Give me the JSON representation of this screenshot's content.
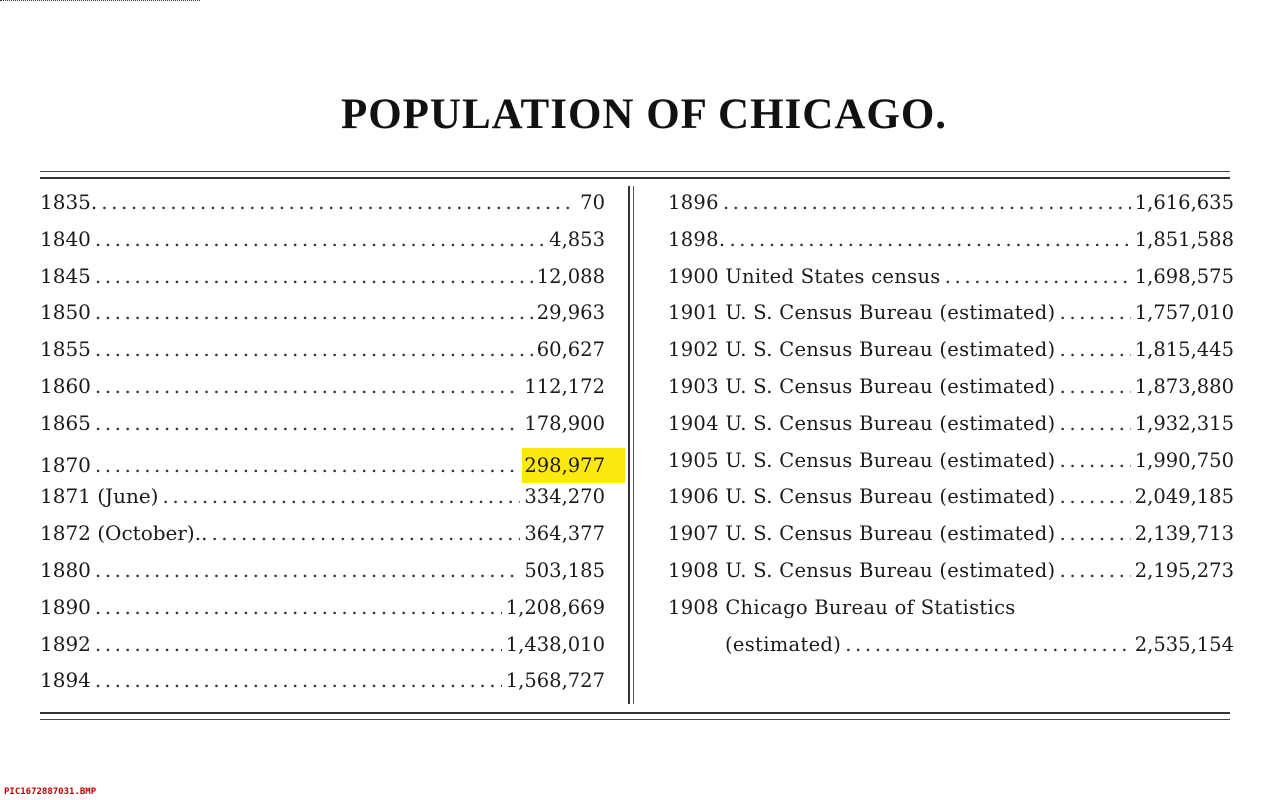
{
  "title": "POPULATION OF CHICAGO.",
  "left_rows": [
    {
      "label": "1835.",
      "value": "70"
    },
    {
      "label": "1840",
      "value": "4,853"
    },
    {
      "label": "1845",
      "value": "12,088"
    },
    {
      "label": "1850",
      "value": "29,963"
    },
    {
      "label": "1855",
      "value": "60,627"
    },
    {
      "label": "1860",
      "value": "112,172"
    },
    {
      "label": "1865",
      "value": "178,900"
    },
    {
      "label": "1870",
      "value": "298,977",
      "highlighted": true
    },
    {
      "label": "1871 (June)",
      "value": "334,270"
    },
    {
      "label": "1872 (October)..",
      "value": "364,377"
    },
    {
      "label": "1880",
      "value": "503,185"
    },
    {
      "label": "1890",
      "value": "1,208,669"
    },
    {
      "label": "1892",
      "value": "1,438,010"
    },
    {
      "label": "1894",
      "value": "1,568,727"
    }
  ],
  "right_rows": [
    {
      "label": "1896",
      "value": "1,616,635"
    },
    {
      "label": "1898.",
      "value": "1,851,588"
    },
    {
      "label": "1900 United States census",
      "value": "1,698,575"
    },
    {
      "label": "1901 U. S. Census Bureau (estimated)",
      "value": "1,757,010"
    },
    {
      "label": "1902 U. S. Census Bureau (estimated)",
      "value": "1,815,445"
    },
    {
      "label": "1903 U. S. Census Bureau (estimated)",
      "value": "1,873,880"
    },
    {
      "label": "1904 U. S. Census Bureau (estimated)",
      "value": "1,932,315"
    },
    {
      "label": "1905 U. S. Census Bureau (estimated)",
      "value": "1,990,750"
    },
    {
      "label": "1906 U. S. Census Bureau (estimated)",
      "value": "2,049,185"
    },
    {
      "label": "1907 U. S. Census Bureau (estimated)",
      "value": "2,139,713"
    },
    {
      "label": "1908 U. S. Census Bureau (estimated)",
      "value": "2,195,273"
    },
    {
      "label": "1908 Chicago Bureau of Statistics",
      "value": ""
    },
    {
      "label": "(estimated)",
      "value": "2,535,154"
    }
  ],
  "highlight_color": "#fde910",
  "footer": {
    "filename": "PIC1672887031.BMP"
  }
}
